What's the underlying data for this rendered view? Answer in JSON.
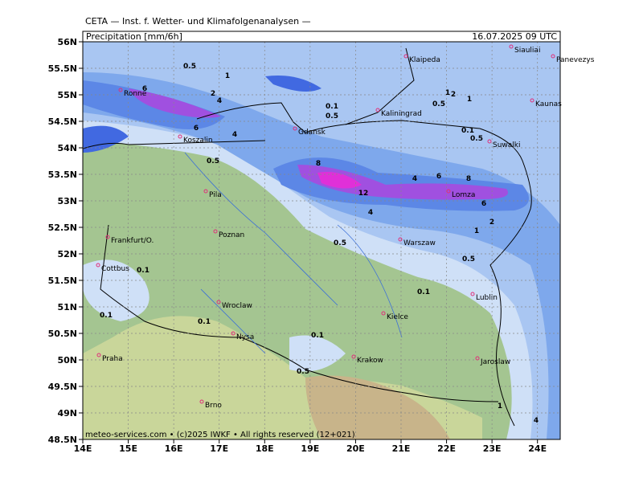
{
  "header": {
    "source": "CETA — Inst. f. Wetter- und Klimafolgenanalysen —",
    "title": "Precipitation [mm/6h]",
    "valid_time": "16.07.2025 09 UTC"
  },
  "map": {
    "lat_labels": [
      "56N",
      "55.5N",
      "55N",
      "54.5N",
      "54N",
      "53.5N",
      "53N",
      "52.5N",
      "52N",
      "51.5N",
      "51N",
      "50.5N",
      "50N",
      "49.5N",
      "49N",
      "48.5N"
    ],
    "lon_labels": [
      "14E",
      "15E",
      "16E",
      "17E",
      "18E",
      "19E",
      "20E",
      "21E",
      "22E",
      "23E",
      "24E"
    ],
    "cities": [
      "Ronne",
      "Koszalin",
      "Gdansk",
      "Kaliningrad",
      "Klaipeda",
      "Siauliai",
      "Panevezys",
      "Kaunas",
      "Suwalki",
      "Lomza",
      "Pila",
      "Poznan",
      "Warszaw",
      "Frankfurt/O.",
      "Cottbus",
      "Wroclaw",
      "Lublin",
      "Kielce",
      "Nysa",
      "Krakow",
      "Jaroslaw",
      "Praha",
      "Brno"
    ],
    "contour_labels": [
      "0.5",
      "1",
      "6",
      "2",
      "4",
      "4",
      "6",
      "0.5",
      "8",
      "12",
      "4",
      "0.1",
      "0.5",
      "0.5",
      "2",
      "1",
      "4",
      "6",
      "8",
      "6",
      "0.1",
      "0.5",
      "1",
      "2",
      "1",
      "0.5",
      "0.1",
      "0.5",
      "0.1",
      "0.1",
      "0.1",
      "0.5",
      "0.1",
      "1",
      "4"
    ]
  },
  "footer": "meteo-services.com • (c)2025 IWKF • All rights reserved (12+021)"
}
